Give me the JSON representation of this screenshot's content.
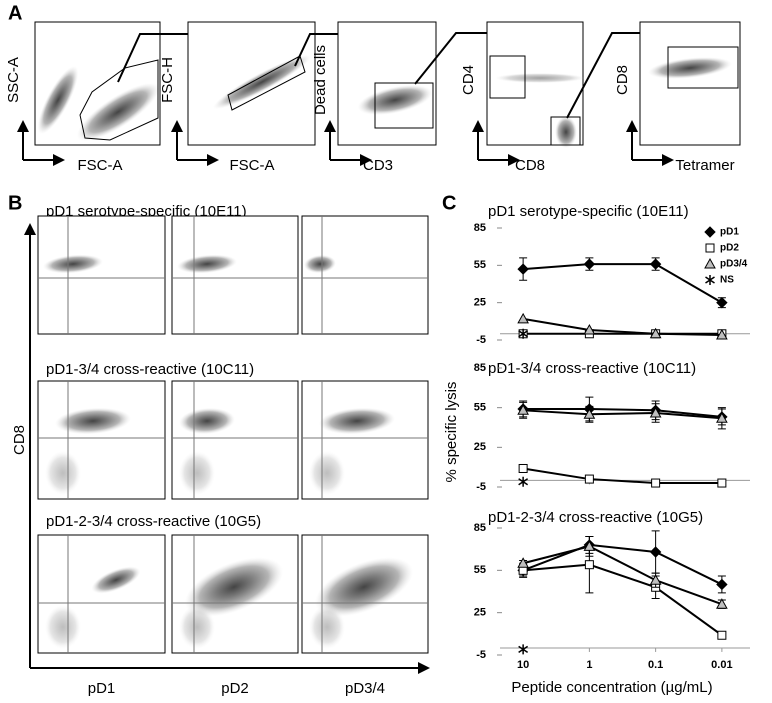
{
  "panel_a": {
    "label": "A",
    "plots": [
      {
        "y_label": "SSC-A",
        "x_label": "FSC-A"
      },
      {
        "y_label": "FSC-H",
        "x_label": "FSC-A"
      },
      {
        "y_label": "Dead cells",
        "x_label": "CD3"
      },
      {
        "y_label": "CD4",
        "x_label": "CD8"
      },
      {
        "y_label": "CD8",
        "x_label": "Tetramer"
      }
    ]
  },
  "panel_b": {
    "label": "B",
    "y_label": "CD8",
    "rows": [
      {
        "title": "pD1 serotype-specific (10E11)"
      },
      {
        "title": "pD1-3/4 cross-reactive (10C11)"
      },
      {
        "title": "pD1-2-3/4 cross-reactive (10G5)"
      }
    ],
    "x_labels": [
      "pD1",
      "pD2",
      "pD3/4"
    ]
  },
  "panel_c": {
    "label": "C",
    "y_label": "% specific lysis",
    "x_label": "Peptide concentration (µg/mL)"
  },
  "chart_data": [
    {
      "type": "line",
      "title": "pD1 serotype-specific (10E11)",
      "categories": [
        null,
        null,
        null,
        null
      ],
      "ylim": [
        -5,
        85
      ],
      "yticks": [
        -5,
        25,
        55,
        85
      ],
      "legend": "upper right",
      "series": [
        {
          "name": "pD1",
          "color": "#000000",
          "marker": "diamond",
          "values": [
            52,
            56,
            56,
            25
          ],
          "errors": [
            9,
            5,
            5,
            4
          ]
        },
        {
          "name": "pD2",
          "color": "#ffffff",
          "marker": "square",
          "values": [
            0,
            0,
            0,
            0
          ]
        },
        {
          "name": "pD3/4",
          "color": "#bfbfbf",
          "marker": "triangle",
          "values": [
            12,
            3,
            0,
            -1
          ]
        },
        {
          "name": "NS",
          "color": "#000000",
          "marker": "star",
          "values": [
            0,
            null,
            null,
            null
          ]
        }
      ]
    },
    {
      "type": "line",
      "title": "pD1-3/4 cross-reactive (10C11)",
      "categories": [
        null,
        null,
        null,
        null
      ],
      "ylim": [
        -5,
        85
      ],
      "yticks": [
        -5,
        25,
        55,
        85
      ],
      "series": [
        {
          "color": "#000000",
          "marker": "diamond",
          "values": [
            54,
            54,
            53,
            48
          ],
          "errors": [
            6,
            9,
            7,
            6
          ]
        },
        {
          "color": "#ffffff",
          "marker": "square",
          "values": [
            9,
            1,
            -2,
            -2
          ]
        },
        {
          "color": "#bfbfbf",
          "marker": "triangle",
          "values": [
            53,
            50,
            51,
            47
          ],
          "errors": [
            6,
            6,
            7,
            8
          ]
        },
        {
          "color": "#000000",
          "marker": "star",
          "values": [
            -1,
            null,
            null,
            null
          ]
        }
      ]
    },
    {
      "type": "line",
      "title": "pD1-2-3/4 cross-reactive (10G5)",
      "categories": [
        "10",
        "1",
        "0.1",
        "0.01"
      ],
      "ylim": [
        -5,
        85
      ],
      "yticks": [
        -5,
        25,
        55,
        85
      ],
      "series": [
        {
          "color": "#000000",
          "marker": "diamond",
          "values": [
            55,
            73,
            68,
            45
          ],
          "errors": [
            5,
            6,
            15,
            6
          ]
        },
        {
          "color": "#ffffff",
          "marker": "square",
          "values": [
            55,
            59,
            43,
            9
          ],
          "errors": [
            4,
            20,
            8,
            1
          ]
        },
        {
          "color": "#bfbfbf",
          "marker": "triangle",
          "values": [
            60,
            72,
            48,
            31
          ],
          "errors": [
            2,
            7,
            5,
            3
          ]
        },
        {
          "color": "#000000",
          "marker": "star",
          "values": [
            -1,
            null,
            null,
            null
          ]
        }
      ]
    }
  ]
}
